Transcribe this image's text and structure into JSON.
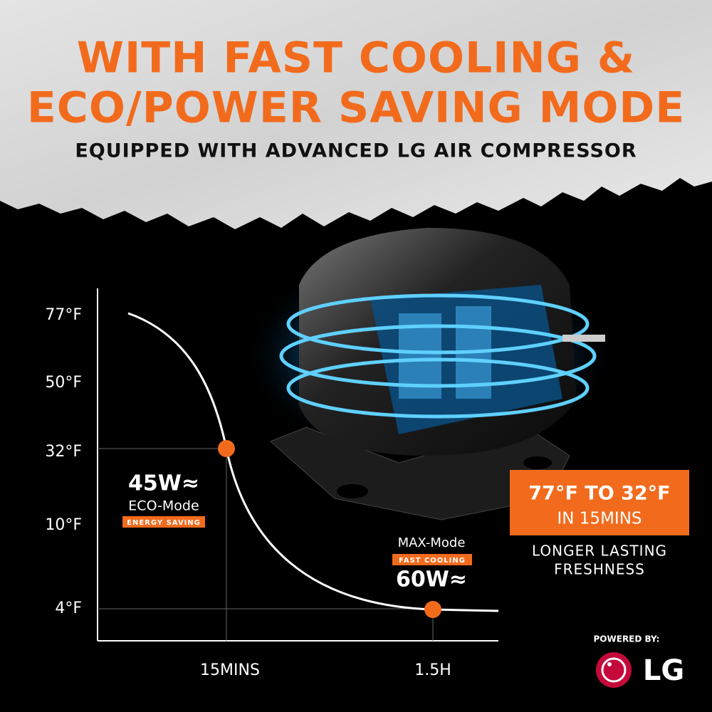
{
  "header": {
    "title_lines": [
      "WITH FAST COOLING &",
      "ECO/POWER SAVING MODE"
    ],
    "subtitle": "EQUIPPED WITH ADVANCED LG AIR COMPRESSOR"
  },
  "graph": {
    "y_labels": [
      "77°F",
      "50°F",
      "32°F",
      "10°F",
      "4°F"
    ],
    "x_labels": [
      "15MINS",
      "1.5H"
    ],
    "eco": {
      "power": "45W≈",
      "mode": "ECO-Mode",
      "tag": "ENERGY SAVING"
    },
    "max": {
      "mode": "MAX-Mode",
      "tag": "FAST COOLING",
      "power": "60W≈"
    }
  },
  "callout": {
    "headline": "77°F TO 32°F",
    "subline": "IN 15MINS"
  },
  "tagline": [
    "LONGER LASTING",
    "FRESHNESS"
  ],
  "brand": {
    "powered_by": "POWERED BY:",
    "logo_text": "LG"
  }
}
